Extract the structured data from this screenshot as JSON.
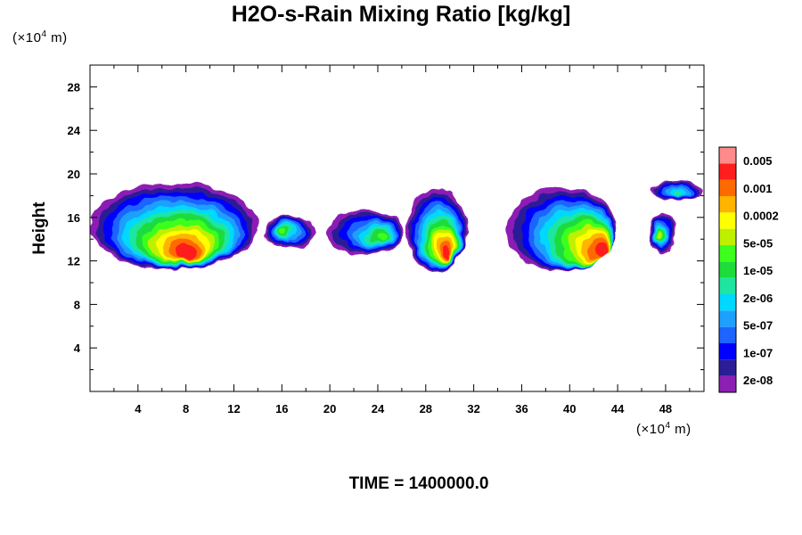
{
  "title": "H2O-s-Rain Mixing Ratio [kg/kg]",
  "time_label": "TIME = 1400000.0",
  "y_unit": {
    "prefix": "(×10",
    "exp": "4",
    "suffix": " m)"
  },
  "x_unit": {
    "prefix": "(×10",
    "exp": "4",
    "suffix": " m)"
  },
  "chart_data": {
    "type": "heatmap",
    "title": "H2O-s-Rain Mixing Ratio [kg/kg]",
    "xlabel": "",
    "ylabel": "Height",
    "x_unit": "×10^4 m",
    "y_unit": "×10^4 m",
    "xlim": [
      0,
      51.2
    ],
    "ylim": [
      0,
      30
    ],
    "x_ticks": [
      "4",
      "8",
      "12",
      "16",
      "20",
      "24",
      "28",
      "32",
      "36",
      "40",
      "44",
      "48"
    ],
    "y_ticks": [
      "4",
      "8",
      "12",
      "16",
      "20",
      "24",
      "28"
    ],
    "grid": false,
    "legend_position": "right",
    "colorbar": {
      "labels": [
        "0.005",
        "0.001",
        "0.0002",
        "5e-05",
        "1e-05",
        "2e-06",
        "5e-07",
        "1e-07",
        "2e-08"
      ],
      "colors": [
        "#8c1fb4",
        "#2a1e96",
        "#0000ff",
        "#1e64ff",
        "#1ea0ff",
        "#00d8ff",
        "#1ee6a0",
        "#1edc3c",
        "#3cff1e",
        "#bef000",
        "#ffff00",
        "#ffb400",
        "#ff6a00",
        "#ff1e1e",
        "#ff8a8a"
      ]
    },
    "features": [
      {
        "x0": 0.0,
        "x1": 14.0,
        "top": 19.2,
        "bottom": 11.2,
        "peak_x": 8.0,
        "peak_y": 12.8,
        "peak_level": 0.001
      },
      {
        "x0": 14.5,
        "x1": 18.8,
        "top": 16.2,
        "bottom": 13.2,
        "peak_x": 16.0,
        "peak_y": 14.8,
        "peak_level": 5e-06
      },
      {
        "x0": 19.8,
        "x1": 26.2,
        "top": 16.6,
        "bottom": 12.6,
        "peak_x": 24.5,
        "peak_y": 14.2,
        "peak_level": 5e-06
      },
      {
        "x0": 26.4,
        "x1": 31.4,
        "top": 18.6,
        "bottom": 11.0,
        "peak_x": 29.7,
        "peak_y": 12.6,
        "peak_level": 0.001
      },
      {
        "x0": 34.8,
        "x1": 44.0,
        "top": 18.8,
        "bottom": 11.0,
        "peak_x": 42.8,
        "peak_y": 12.8,
        "peak_level": 0.001
      },
      {
        "x0": 46.6,
        "x1": 48.8,
        "top": 16.5,
        "bottom": 12.6,
        "peak_x": 47.4,
        "peak_y": 14.2,
        "peak_level": 2e-05
      },
      {
        "x0": 46.8,
        "x1": 51.2,
        "top": 19.3,
        "bottom": 17.6,
        "peak_x": 49.0,
        "peak_y": 18.2,
        "peak_level": 5e-07
      }
    ]
  }
}
